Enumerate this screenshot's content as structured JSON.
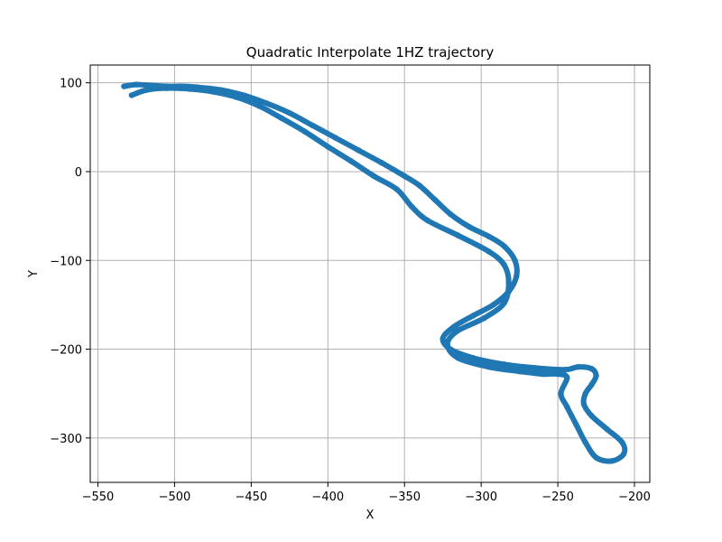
{
  "chart_data": {
    "type": "scatter",
    "title": "Quadratic Interpolate 1HZ trajectory",
    "xlabel": "X",
    "ylabel": "Y",
    "xlim": [
      -555,
      -190
    ],
    "ylim": [
      -350,
      120
    ],
    "xticks": [
      -550,
      -500,
      -450,
      -400,
      -350,
      -300,
      -250,
      -200
    ],
    "yticks": [
      -300,
      -200,
      -100,
      0,
      100
    ],
    "xtick_labels": [
      "−550",
      "−500",
      "−450",
      "−400",
      "−350",
      "−300",
      "−250",
      "−200"
    ],
    "ytick_labels": [
      "−300",
      "−200",
      "−100",
      "0",
      "100"
    ],
    "grid": true,
    "series_color": "#1f77b4",
    "series": [
      {
        "points": [
          [
            -533,
            96
          ],
          [
            -525,
            98
          ],
          [
            -515,
            97
          ],
          [
            -505,
            96
          ],
          [
            -495,
            96
          ],
          [
            -485,
            95
          ],
          [
            -470,
            92
          ],
          [
            -455,
            86
          ],
          [
            -440,
            77
          ],
          [
            -425,
            66
          ],
          [
            -410,
            52
          ],
          [
            -395,
            38
          ],
          [
            -380,
            24
          ],
          [
            -365,
            10
          ],
          [
            -350,
            -5
          ],
          [
            -340,
            -16
          ],
          [
            -330,
            -32
          ],
          [
            -320,
            -48
          ],
          [
            -308,
            -62
          ],
          [
            -295,
            -73
          ],
          [
            -285,
            -84
          ],
          [
            -278,
            -100
          ],
          [
            -277,
            -118
          ],
          [
            -282,
            -135
          ],
          [
            -292,
            -150
          ],
          [
            -305,
            -162
          ],
          [
            -318,
            -175
          ],
          [
            -325,
            -188
          ],
          [
            -320,
            -200
          ],
          [
            -305,
            -210
          ],
          [
            -285,
            -217
          ],
          [
            -265,
            -221
          ],
          [
            -245,
            -223
          ],
          [
            -237,
            -220
          ],
          [
            -228,
            -222
          ],
          [
            -225,
            -230
          ],
          [
            -228,
            -240
          ],
          [
            -232,
            -250
          ],
          [
            -233,
            -262
          ],
          [
            -228,
            -275
          ],
          [
            -218,
            -290
          ],
          [
            -208,
            -305
          ],
          [
            -207,
            -318
          ],
          [
            -215,
            -326
          ],
          [
            -225,
            -322
          ],
          [
            -232,
            -305
          ],
          [
            -238,
            -285
          ],
          [
            -244,
            -265
          ],
          [
            -248,
            -250
          ],
          [
            -244,
            -232
          ],
          [
            -250,
            -228
          ],
          [
            -260,
            -228
          ],
          [
            -275,
            -225
          ],
          [
            -295,
            -220
          ],
          [
            -315,
            -210
          ],
          [
            -322,
            -195
          ],
          [
            -316,
            -180
          ],
          [
            -298,
            -165
          ],
          [
            -285,
            -148
          ],
          [
            -282,
            -125
          ],
          [
            -285,
            -105
          ],
          [
            -295,
            -90
          ],
          [
            -315,
            -72
          ],
          [
            -335,
            -55
          ],
          [
            -345,
            -40
          ],
          [
            -355,
            -20
          ],
          [
            -370,
            -5
          ],
          [
            -385,
            12
          ],
          [
            -400,
            28
          ],
          [
            -415,
            45
          ],
          [
            -430,
            60
          ],
          [
            -445,
            74
          ],
          [
            -460,
            84
          ],
          [
            -475,
            90
          ],
          [
            -490,
            93
          ],
          [
            -505,
            94
          ],
          [
            -518,
            92
          ],
          [
            -528,
            86
          ]
        ]
      }
    ]
  }
}
